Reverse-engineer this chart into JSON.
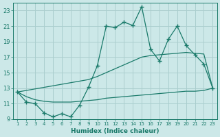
{
  "xlabel": "Humidex (Indice chaleur)",
  "x": [
    1,
    2,
    3,
    4,
    5,
    6,
    7,
    8,
    9,
    10,
    11,
    12,
    13,
    14,
    15,
    16,
    17,
    18,
    19,
    20,
    21,
    22,
    23
  ],
  "main_line": [
    12.5,
    11.2,
    11.0,
    9.8,
    9.3,
    9.7,
    9.3,
    10.8,
    13.1,
    15.9,
    21.0,
    20.8,
    21.5,
    21.1,
    23.5,
    18.0,
    16.5,
    19.3,
    21.0,
    18.5,
    17.3,
    16.1,
    13.0
  ],
  "upper_line": [
    12.5,
    12.7,
    12.9,
    13.1,
    13.3,
    13.5,
    13.7,
    13.9,
    14.1,
    14.5,
    15.0,
    15.5,
    16.0,
    16.5,
    17.0,
    17.2,
    17.3,
    17.4,
    17.5,
    17.6,
    17.5,
    17.4,
    13.0
  ],
  "lower_line": [
    12.5,
    11.9,
    11.5,
    11.3,
    11.2,
    11.2,
    11.2,
    11.3,
    11.4,
    11.5,
    11.7,
    11.8,
    11.9,
    12.0,
    12.1,
    12.2,
    12.3,
    12.4,
    12.5,
    12.6,
    12.6,
    12.7,
    13.0
  ],
  "line_color": "#1a7a6a",
  "bg_color": "#cce8e8",
  "grid_color": "#aacece",
  "ylim": [
    9,
    24
  ],
  "yticks": [
    9,
    11,
    13,
    15,
    17,
    19,
    21,
    23
  ],
  "xlim": [
    0.5,
    23.5
  ]
}
